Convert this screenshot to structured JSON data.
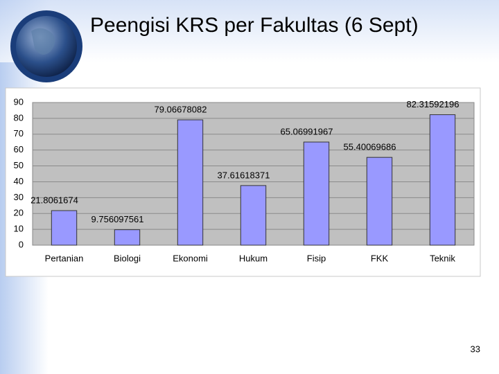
{
  "chart_data": {
    "type": "bar",
    "title": "Peengisi KRS per Fakultas (6 Sept)",
    "categories": [
      "Pertanian",
      "Biologi",
      "Ekonomi",
      "Hukum",
      "Fisip",
      "FKK",
      "Teknik"
    ],
    "values": [
      21.8061674,
      9.756097561,
      79.06678082,
      37.61618371,
      65.06991967,
      55.40069686,
      82.31592196
    ],
    "color": "#9999ff",
    "ylim": [
      0,
      90
    ],
    "yticks": [
      0,
      10,
      20,
      30,
      40,
      50,
      60,
      70,
      80,
      90
    ],
    "grid": true
  },
  "slide_number": "33"
}
